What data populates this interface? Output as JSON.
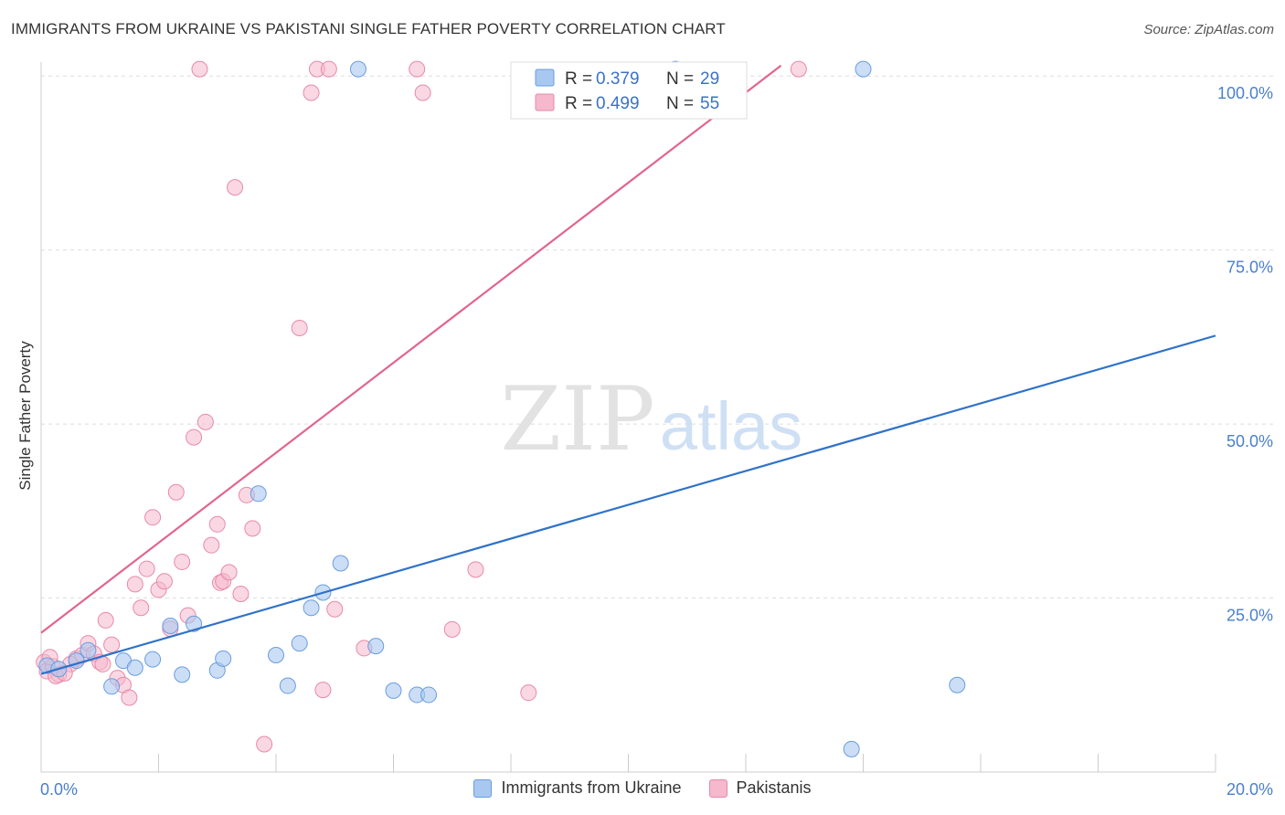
{
  "title": "IMMIGRANTS FROM UKRAINE VS PAKISTANI SINGLE FATHER POVERTY CORRELATION CHART",
  "source": "Source: ZipAtlas.com",
  "watermark": {
    "zip": "ZIP",
    "atlas": "atlas"
  },
  "legend_box": {
    "rows": [
      {
        "r_label": "R =",
        "r_value": "0.379",
        "n_label": "N =",
        "n_value": "29"
      },
      {
        "r_label": "R =",
        "r_value": "0.499",
        "n_label": "N =",
        "n_value": "55"
      }
    ]
  },
  "bottom_legend": {
    "series1": "Immigrants from Ukraine",
    "series2": "Pakistanis"
  },
  "colors": {
    "ukraine_fill": "#a9c8f0",
    "ukraine_stroke": "#6a9de0",
    "ukraine_line": "#2f72c9",
    "pakistani_fill": "#f5b8cc",
    "pakistani_stroke": "#e88aa8",
    "pakistani_line": "#e06590",
    "tick_text": "#4a7fcf",
    "grid": "#dddddd"
  },
  "chart_data": {
    "type": "scatter",
    "title": "IMMIGRANTS FROM UKRAINE VS PAKISTANI SINGLE FATHER POVERTY CORRELATION CHART",
    "xlabel": "",
    "ylabel": "Single Father Poverty",
    "xlim": [
      0,
      20
    ],
    "ylim": [
      0,
      102
    ],
    "x_tick_labels": [
      "0.0%",
      "20.0%"
    ],
    "y_ticks": [
      25,
      50,
      75,
      100
    ],
    "y_tick_labels": [
      "25.0%",
      "50.0%",
      "75.0%",
      "100.0%"
    ],
    "grid": true,
    "series": [
      {
        "name": "Immigrants from Ukraine",
        "R": 0.379,
        "N": 29,
        "trend": {
          "x": [
            0,
            20
          ],
          "y": [
            14.1,
            62.7
          ]
        },
        "points": [
          {
            "x": 0.1,
            "y": 15.3
          },
          {
            "x": 0.3,
            "y": 14.8
          },
          {
            "x": 0.6,
            "y": 16.0
          },
          {
            "x": 0.8,
            "y": 17.5
          },
          {
            "x": 1.2,
            "y": 12.3
          },
          {
            "x": 1.4,
            "y": 16.0
          },
          {
            "x": 1.6,
            "y": 15.0
          },
          {
            "x": 1.9,
            "y": 16.2
          },
          {
            "x": 2.2,
            "y": 21.0
          },
          {
            "x": 2.4,
            "y": 14.0
          },
          {
            "x": 2.6,
            "y": 21.3
          },
          {
            "x": 3.0,
            "y": 14.6
          },
          {
            "x": 3.1,
            "y": 16.3
          },
          {
            "x": 3.7,
            "y": 40.0
          },
          {
            "x": 4.0,
            "y": 16.8
          },
          {
            "x": 4.2,
            "y": 12.4
          },
          {
            "x": 4.4,
            "y": 18.5
          },
          {
            "x": 4.6,
            "y": 23.6
          },
          {
            "x": 4.8,
            "y": 25.8
          },
          {
            "x": 5.1,
            "y": 30.0
          },
          {
            "x": 5.4,
            "y": 101.0
          },
          {
            "x": 5.7,
            "y": 18.1
          },
          {
            "x": 6.0,
            "y": 11.7
          },
          {
            "x": 6.4,
            "y": 11.1
          },
          {
            "x": 6.6,
            "y": 11.1
          },
          {
            "x": 10.8,
            "y": 101.0
          },
          {
            "x": 14.0,
            "y": 101.0
          },
          {
            "x": 15.6,
            "y": 12.5
          },
          {
            "x": 13.8,
            "y": 3.3
          }
        ]
      },
      {
        "name": "Pakistanis",
        "R": 0.499,
        "N": 55,
        "trend": {
          "x": [
            0,
            12.6
          ],
          "y": [
            20.0,
            101.5
          ]
        },
        "points": [
          {
            "x": 0.05,
            "y": 15.8
          },
          {
            "x": 0.1,
            "y": 14.5
          },
          {
            "x": 0.2,
            "y": 15.2
          },
          {
            "x": 0.3,
            "y": 14.0
          },
          {
            "x": 0.5,
            "y": 15.5
          },
          {
            "x": 0.6,
            "y": 16.3
          },
          {
            "x": 0.7,
            "y": 16.8
          },
          {
            "x": 0.8,
            "y": 18.5
          },
          {
            "x": 0.9,
            "y": 17.0
          },
          {
            "x": 1.0,
            "y": 15.8
          },
          {
            "x": 1.1,
            "y": 21.8
          },
          {
            "x": 1.2,
            "y": 18.3
          },
          {
            "x": 1.3,
            "y": 13.5
          },
          {
            "x": 1.4,
            "y": 12.5
          },
          {
            "x": 1.5,
            "y": 10.7
          },
          {
            "x": 1.6,
            "y": 27.0
          },
          {
            "x": 1.7,
            "y": 23.6
          },
          {
            "x": 1.8,
            "y": 29.2
          },
          {
            "x": 1.9,
            "y": 36.6
          },
          {
            "x": 2.0,
            "y": 26.2
          },
          {
            "x": 2.1,
            "y": 27.4
          },
          {
            "x": 2.2,
            "y": 20.6
          },
          {
            "x": 2.3,
            "y": 40.2
          },
          {
            "x": 2.4,
            "y": 30.2
          },
          {
            "x": 2.5,
            "y": 22.5
          },
          {
            "x": 2.6,
            "y": 48.1
          },
          {
            "x": 2.7,
            "y": 101.0
          },
          {
            "x": 2.8,
            "y": 50.3
          },
          {
            "x": 2.9,
            "y": 32.6
          },
          {
            "x": 3.0,
            "y": 35.6
          },
          {
            "x": 3.05,
            "y": 27.2
          },
          {
            "x": 3.1,
            "y": 27.4
          },
          {
            "x": 3.2,
            "y": 28.7
          },
          {
            "x": 3.3,
            "y": 84.0
          },
          {
            "x": 3.4,
            "y": 25.6
          },
          {
            "x": 3.5,
            "y": 39.8
          },
          {
            "x": 3.6,
            "y": 35.0
          },
          {
            "x": 3.8,
            "y": 4.0
          },
          {
            "x": 4.4,
            "y": 63.8
          },
          {
            "x": 4.6,
            "y": 97.6
          },
          {
            "x": 4.7,
            "y": 101.0
          },
          {
            "x": 4.8,
            "y": 11.8
          },
          {
            "x": 4.9,
            "y": 101.0
          },
          {
            "x": 5.0,
            "y": 23.4
          },
          {
            "x": 5.5,
            "y": 17.8
          },
          {
            "x": 6.4,
            "y": 101.0
          },
          {
            "x": 6.5,
            "y": 97.6
          },
          {
            "x": 7.0,
            "y": 20.5
          },
          {
            "x": 7.4,
            "y": 29.1
          },
          {
            "x": 8.3,
            "y": 11.4
          },
          {
            "x": 12.9,
            "y": 101.0
          },
          {
            "x": 0.25,
            "y": 13.8
          },
          {
            "x": 0.4,
            "y": 14.2
          },
          {
            "x": 1.05,
            "y": 15.5
          },
          {
            "x": 0.15,
            "y": 16.5
          }
        ]
      }
    ]
  }
}
